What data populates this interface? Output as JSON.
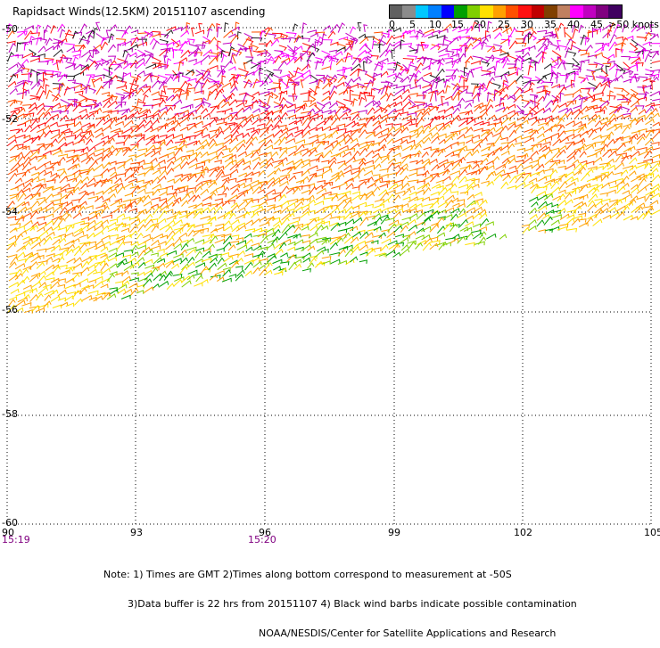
{
  "title": "Rapidsact Winds(12.5KM) 20151107 ascending",
  "legend": {
    "colors": [
      "#606060",
      "#8c8c8c",
      "#00c8ff",
      "#0080ff",
      "#0000ff",
      "#00a000",
      "#80d000",
      "#ffe000",
      "#ffa000",
      "#ff5000",
      "#ff1010",
      "#c00000",
      "#804000",
      "#c08060",
      "#ff00ff",
      "#c000c0",
      "#800080",
      "#400060"
    ],
    "labels": [
      "0",
      "5",
      "10",
      "15",
      "20",
      "25",
      "30",
      "35",
      "40",
      "45",
      ">50 knots"
    ]
  },
  "axes": {
    "x_ticks": [
      "90",
      "93",
      "96",
      "99",
      "102",
      "105"
    ],
    "y_ticks": [
      "-50",
      "-52",
      "-54",
      "-56",
      "-58",
      "-60"
    ]
  },
  "times": [
    "15:19",
    "15:20"
  ],
  "notes": {
    "line1": "Note: 1) Times are GMT 2)Times along bottom correspond to measurement at -50S",
    "line2": "3)Data buffer is 22 hrs from 20151107 4) Black wind barbs indicate possible contamination",
    "line3": "NOAA/NESDIS/Center for Satellite Applications and Research"
  }
}
